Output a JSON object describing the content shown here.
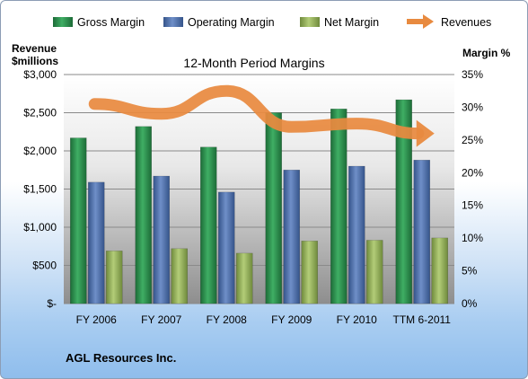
{
  "chart_data": {
    "type": "bar",
    "title": "12-Month Period Margins",
    "categories": [
      "FY 2006",
      "FY 2007",
      "FY 2008",
      "FY 2009",
      "FY 2010",
      "TTM 6-2011"
    ],
    "series": [
      {
        "name": "Gross Margin",
        "axis": "left",
        "color": "#2a8f4c",
        "values": [
          2170,
          2320,
          2050,
          2500,
          2550,
          2670
        ]
      },
      {
        "name": "Operating Margin",
        "axis": "left",
        "color": "#4f71ad",
        "values": [
          1590,
          1670,
          1460,
          1750,
          1800,
          1880
        ]
      },
      {
        "name": "Net Margin",
        "axis": "left",
        "color": "#93b25a",
        "values": [
          690,
          720,
          660,
          820,
          830,
          860
        ]
      },
      {
        "name": "Revenues",
        "axis": "right",
        "color": "#e88a3f",
        "type": "trend-arrow",
        "values": [
          30.5,
          29.0,
          32.5,
          27.0,
          27.5,
          26.0
        ]
      }
    ],
    "y_left": {
      "label_line1": "Revenue",
      "label_line2": "$millions",
      "range": [
        0,
        3000
      ],
      "ticks": [
        0,
        500,
        1000,
        1500,
        2000,
        2500,
        3000
      ],
      "tick_labels": [
        "$-",
        "$500",
        "$1,000",
        "$1,500",
        "$2,000",
        "$2,500",
        "$3,000"
      ]
    },
    "y_right": {
      "label": "Margin %",
      "range": [
        0,
        35
      ],
      "ticks": [
        0,
        5,
        10,
        15,
        20,
        25,
        30,
        35
      ],
      "tick_labels": [
        "0%",
        "5%",
        "10%",
        "15%",
        "20%",
        "25%",
        "30%",
        "35%"
      ]
    },
    "grid": true,
    "legend_position": "top"
  },
  "company": "AGL Resources Inc.",
  "colors": {
    "plot_top": "#ffffff",
    "plot_bottom": "#9a9a9a",
    "gridline": "#8a8a8a"
  }
}
